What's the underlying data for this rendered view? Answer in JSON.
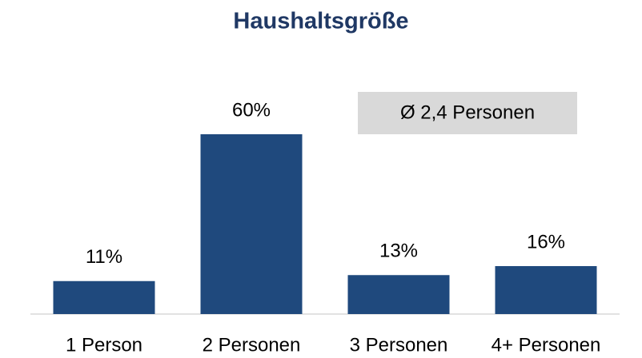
{
  "chart_data": {
    "type": "bar",
    "title": "Haushaltsgröße",
    "categories": [
      "1 Person",
      "2 Personen",
      "3 Personen",
      "4+ Personen"
    ],
    "values": [
      11,
      60,
      13,
      16
    ],
    "value_labels": [
      "11%",
      "60%",
      "13%",
      "16%"
    ],
    "color": "#1f497d",
    "annotation": "Ø 2,4 Personen"
  }
}
